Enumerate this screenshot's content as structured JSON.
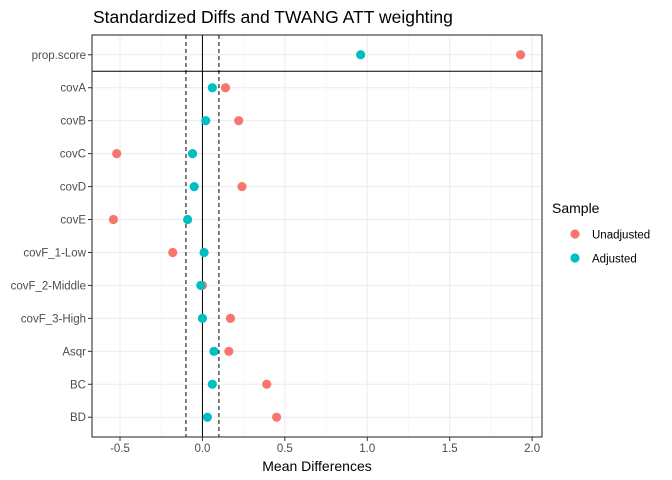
{
  "chart_data": {
    "type": "scatter",
    "title": "Standardized Diffs and TWANG ATT weighting",
    "xlabel": "Mean Differences",
    "ylabel": "",
    "xlim": [
      -0.67,
      2.06
    ],
    "x_ticks": [
      -0.5,
      0.0,
      0.5,
      1.0,
      1.5,
      2.0
    ],
    "x_tick_labels": [
      "-0.5",
      "0.0",
      "0.5",
      "1.0",
      "1.5",
      "2.0"
    ],
    "categories": [
      "prop.score",
      "covA",
      "covB",
      "covC",
      "covD",
      "covE",
      "covF_1-Low",
      "covF_2-Middle",
      "covF_3-High",
      "Asqr",
      "BC",
      "BD"
    ],
    "series": [
      {
        "name": "Unadjusted",
        "color": "#F8766D",
        "values": [
          1.93,
          0.14,
          0.22,
          -0.52,
          0.24,
          -0.54,
          -0.18,
          0.0,
          0.17,
          0.16,
          0.39,
          0.45
        ]
      },
      {
        "name": "Adjusted",
        "color": "#00BFC4",
        "values": [
          0.96,
          0.06,
          0.02,
          -0.06,
          -0.05,
          -0.09,
          0.01,
          -0.01,
          0.0,
          0.07,
          0.06,
          0.03
        ]
      }
    ],
    "reference_lines": {
      "solid": [
        0.0
      ],
      "dashed": [
        -0.1,
        0.1
      ]
    },
    "legend": {
      "title": "Sample",
      "position": "right"
    },
    "grid": true
  }
}
